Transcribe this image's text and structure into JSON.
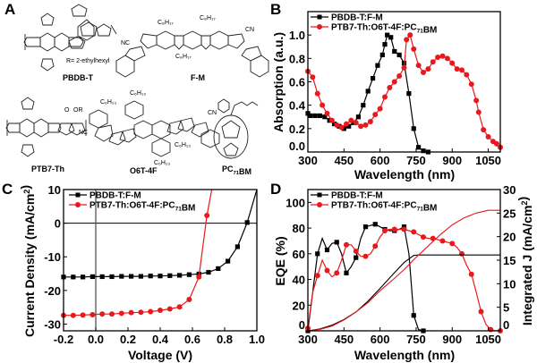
{
  "panel_labels": [
    "A",
    "B",
    "C",
    "D"
  ],
  "panel_a": {
    "compounds": [
      "PBDB-T",
      "F-M",
      "PTB7-Th",
      "O6T-4F",
      "PC71BM"
    ],
    "note": "R= 2-ethylhexyl"
  },
  "colors": {
    "black_series": "#000000",
    "red_series": "#e8191d"
  },
  "chart_data": [
    {
      "panel": "B",
      "type": "line",
      "xlabel": "Wavelength (nm)",
      "ylabel": "Absorption (a.u.)",
      "xlim": [
        300,
        1100
      ],
      "ylim": [
        0,
        1.2
      ],
      "xticks": [
        "300",
        "450",
        "600",
        "750",
        "900",
        "1050"
      ],
      "yticks": [
        "0.0",
        "0.2",
        "0.4",
        "0.6",
        "0.8",
        "1.0"
      ],
      "legend_position": "top-left",
      "series": [
        {
          "name": "PBDB-T:F-M",
          "color": "#000000",
          "marker": "square",
          "x": [
            300,
            310,
            330,
            350,
            370,
            390,
            410,
            430,
            450,
            470,
            490,
            510,
            530,
            550,
            570,
            590,
            610,
            620,
            630,
            645,
            660,
            680,
            700,
            720,
            740,
            760,
            780,
            800
          ],
          "y": [
            0.33,
            0.31,
            0.31,
            0.31,
            0.3,
            0.27,
            0.24,
            0.22,
            0.2,
            0.22,
            0.25,
            0.3,
            0.4,
            0.52,
            0.63,
            0.74,
            0.83,
            0.92,
            1.0,
            0.98,
            0.86,
            0.83,
            0.76,
            0.5,
            0.2,
            0.04,
            0.01,
            0.0
          ]
        },
        {
          "name": "PTB7-Th:O6T-4F:PC71BM",
          "color": "#e8191d",
          "marker": "circle",
          "x": [
            300,
            320,
            340,
            360,
            380,
            400,
            420,
            440,
            460,
            480,
            500,
            520,
            540,
            560,
            580,
            600,
            620,
            640,
            660,
            680,
            700,
            710,
            725,
            740,
            760,
            780,
            800,
            820,
            840,
            860,
            880,
            900,
            920,
            940,
            960,
            980,
            1000,
            1010,
            1030,
            1050,
            1070,
            1085,
            1100
          ],
          "y": [
            0.69,
            0.64,
            0.5,
            0.4,
            0.33,
            0.27,
            0.23,
            0.21,
            0.24,
            0.27,
            0.25,
            0.22,
            0.23,
            0.26,
            0.32,
            0.37,
            0.47,
            0.55,
            0.6,
            0.65,
            0.72,
            0.96,
            1.0,
            0.88,
            0.74,
            0.68,
            0.71,
            0.77,
            0.81,
            0.82,
            0.8,
            0.76,
            0.71,
            0.7,
            0.66,
            0.58,
            0.44,
            0.34,
            0.19,
            0.13,
            0.09,
            0.07,
            0.04
          ]
        }
      ]
    },
    {
      "panel": "C",
      "type": "line",
      "xlabel": "Voltage (V)",
      "ylabel": "Current Density (mA/cm2)",
      "xlim": [
        -0.2,
        1.0
      ],
      "ylim": [
        -32,
        10
      ],
      "xticks": [
        "-0.2",
        "0.0",
        "0.2",
        "0.4",
        "0.6",
        "0.8",
        "1.0"
      ],
      "yticks": [
        "10",
        "0",
        "-10",
        "-20",
        "-30"
      ],
      "legend_position": "top-left",
      "series": [
        {
          "name": "PBDB-T:F-M",
          "color": "#000000",
          "marker": "square",
          "x": [
            -0.2,
            -0.14,
            -0.08,
            -0.02,
            0.04,
            0.1,
            0.16,
            0.22,
            0.28,
            0.34,
            0.4,
            0.46,
            0.52,
            0.58,
            0.64,
            0.7,
            0.76,
            0.82,
            0.88,
            0.94,
            1.0
          ],
          "y": [
            -16.0,
            -16.0,
            -16.0,
            -15.9,
            -15.9,
            -15.9,
            -15.8,
            -15.8,
            -15.8,
            -15.7,
            -15.7,
            -15.6,
            -15.5,
            -15.3,
            -15.1,
            -14.6,
            -13.5,
            -11.3,
            -7.0,
            0.2,
            10
          ]
        },
        {
          "name": "PTB7-Th:O6T-4F:PC71BM",
          "color": "#e8191d",
          "marker": "circle",
          "x": [
            -0.2,
            -0.14,
            -0.08,
            -0.02,
            0.04,
            0.1,
            0.16,
            0.22,
            0.28,
            0.34,
            0.4,
            0.46,
            0.52,
            0.58,
            0.64,
            0.69,
            0.72
          ],
          "y": [
            -27.4,
            -27.4,
            -27.3,
            -27.2,
            -27.0,
            -27.0,
            -26.8,
            -26.6,
            -26.5,
            -26.3,
            -25.9,
            -25.5,
            -24.9,
            -22.7,
            -16.0,
            2.3,
            10
          ]
        }
      ]
    },
    {
      "panel": "D",
      "type": "line",
      "xlabel": "Wavelength (nm)",
      "ylabel": "EQE (%)",
      "y2label": "Integrated J (mA/cm2)",
      "xlim": [
        300,
        1100
      ],
      "ylim": [
        0,
        110
      ],
      "y2lim": [
        0,
        30
      ],
      "xticks": [
        "300",
        "450",
        "600",
        "750",
        "900",
        "1050"
      ],
      "yticks": [
        "0",
        "20",
        "40",
        "60",
        "80",
        "100"
      ],
      "y2ticks": [
        "0",
        "5",
        "10",
        "15",
        "20",
        "25",
        "30"
      ],
      "legend_position": "top-left",
      "series": [
        {
          "name": "PBDB-T:F-M",
          "color": "#000000",
          "marker": "square",
          "axis": "left",
          "x": [
            300,
            320,
            340,
            360,
            380,
            400,
            420,
            440,
            460,
            480,
            500,
            520,
            540,
            560,
            580,
            600,
            620,
            640,
            660,
            680,
            700,
            720,
            740,
            760,
            780
          ],
          "y": [
            0,
            30,
            60,
            72,
            63,
            68,
            69,
            60,
            45,
            50,
            57,
            72,
            81,
            82,
            83,
            81,
            79,
            78,
            78,
            79,
            81,
            60,
            12,
            1,
            0
          ]
        },
        {
          "name": "PTB7-Th:O6T-4F:PC71BM",
          "color": "#e8191d",
          "marker": "circle",
          "axis": "left",
          "x": [
            300,
            320,
            340,
            360,
            380,
            400,
            420,
            440,
            460,
            480,
            500,
            520,
            540,
            560,
            580,
            600,
            620,
            640,
            660,
            680,
            700,
            720,
            740,
            760,
            780,
            800,
            820,
            840,
            860,
            880,
            900,
            920,
            940,
            960,
            980,
            1000,
            1020,
            1040,
            1060,
            1080,
            1100
          ],
          "y": [
            2,
            30,
            43,
            55,
            47,
            42,
            45,
            55,
            67,
            67,
            62,
            58,
            58,
            60,
            66,
            73,
            78,
            79,
            79,
            79,
            79,
            78,
            77,
            75,
            73,
            72,
            72,
            71,
            70,
            69,
            68,
            65,
            60,
            51,
            44,
            30,
            15,
            5,
            1,
            0,
            0
          ]
        },
        {
          "name": "PBDB-T:F-M integrated J",
          "color": "#000000",
          "marker": "none",
          "axis": "right",
          "x": [
            300,
            350,
            400,
            450,
            500,
            550,
            600,
            650,
            700,
            740,
            760,
            800,
            900,
            1000,
            1100
          ],
          "y": [
            0,
            0.4,
            1.2,
            2.4,
            4.0,
            6.3,
            9.0,
            11.8,
            14.5,
            16.0,
            16.1,
            16.1,
            16.1,
            16.1,
            16.1
          ]
        },
        {
          "name": "PTB7-Th:O6T-4F:PC71BM integrated J",
          "color": "#e8191d",
          "marker": "none",
          "axis": "right",
          "x": [
            300,
            350,
            400,
            450,
            500,
            550,
            600,
            650,
            700,
            750,
            800,
            850,
            900,
            950,
            1000,
            1050,
            1100
          ],
          "y": [
            0,
            0.3,
            1.0,
            2.3,
            4.0,
            6.0,
            8.5,
            10.7,
            13.0,
            15.6,
            18.0,
            20.4,
            22.5,
            24.0,
            25.0,
            25.6,
            25.6
          ]
        }
      ]
    }
  ]
}
